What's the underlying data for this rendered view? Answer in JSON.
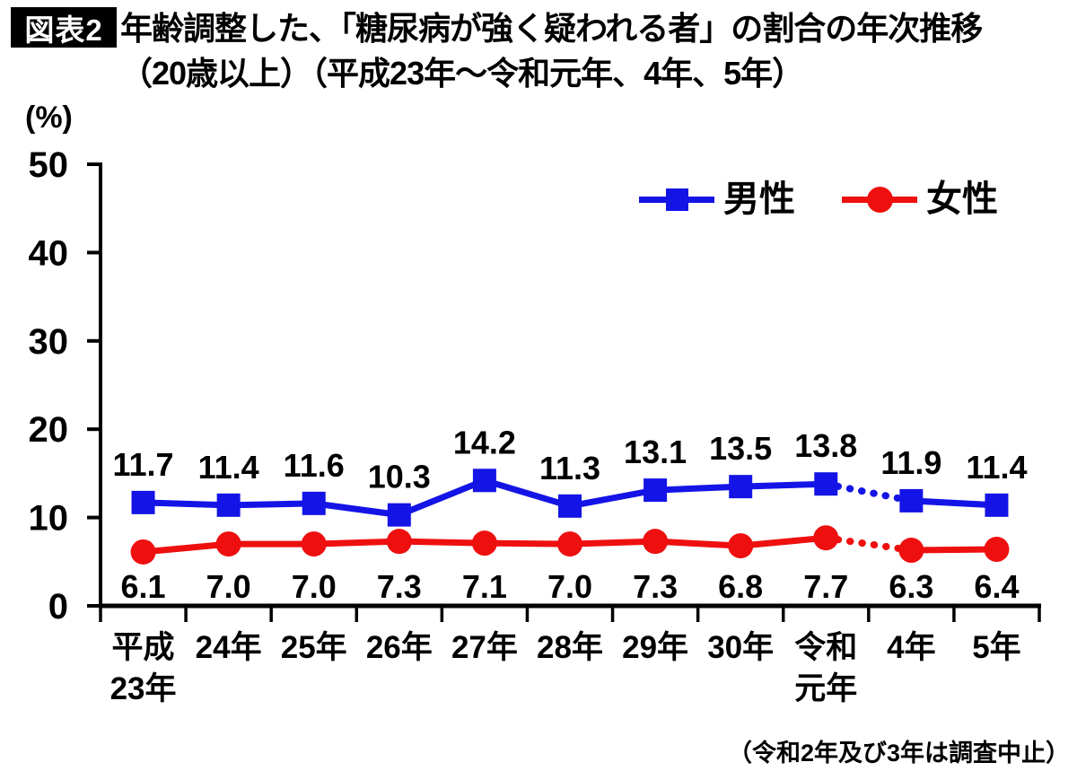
{
  "figure_label": "図表2",
  "title_line1": "年齢調整した、「糖尿病が強く疑われる者」の割合の年次推移",
  "title_line2": "（20歳以上）（平成23年～令和元年、4年、5年）",
  "unit_label": "(%)",
  "footnote": "（令和2年及び3年は調査中止）",
  "colors": {
    "male": "#1414E6",
    "female": "#EE0F0F",
    "axis": "#000000",
    "text": "#000000"
  },
  "chart_data": {
    "type": "line",
    "title": "年齢調整した、「糖尿病が強く疑われる者」の割合の年次推移（20歳以上）（平成23年～令和元年、4年、5年）",
    "ylabel": "(%)",
    "ylim": [
      0,
      50
    ],
    "yticks": [
      0,
      10,
      20,
      30,
      40,
      50
    ],
    "grid": false,
    "legend_position": "top-right",
    "categories": [
      [
        "平成",
        "23年"
      ],
      [
        "24年"
      ],
      [
        "25年"
      ],
      [
        "26年"
      ],
      [
        "27年"
      ],
      [
        "28年"
      ],
      [
        "29年"
      ],
      [
        "30年"
      ],
      [
        "令和",
        "元年"
      ],
      [
        "4年"
      ],
      [
        "5年"
      ]
    ],
    "series": [
      {
        "name": "男性",
        "marker": "square",
        "color": "#1414E6",
        "values": [
          11.7,
          11.4,
          11.6,
          10.3,
          14.2,
          11.3,
          13.1,
          13.5,
          13.8,
          11.9,
          11.4
        ]
      },
      {
        "name": "女性",
        "marker": "circle",
        "color": "#EE0F0F",
        "values": [
          6.1,
          7.0,
          7.0,
          7.3,
          7.1,
          7.0,
          7.3,
          6.8,
          7.7,
          6.3,
          6.4
        ]
      }
    ],
    "dotted_gap_after_index": 8,
    "annotation": "（令和2年及び3年は調査中止）"
  }
}
